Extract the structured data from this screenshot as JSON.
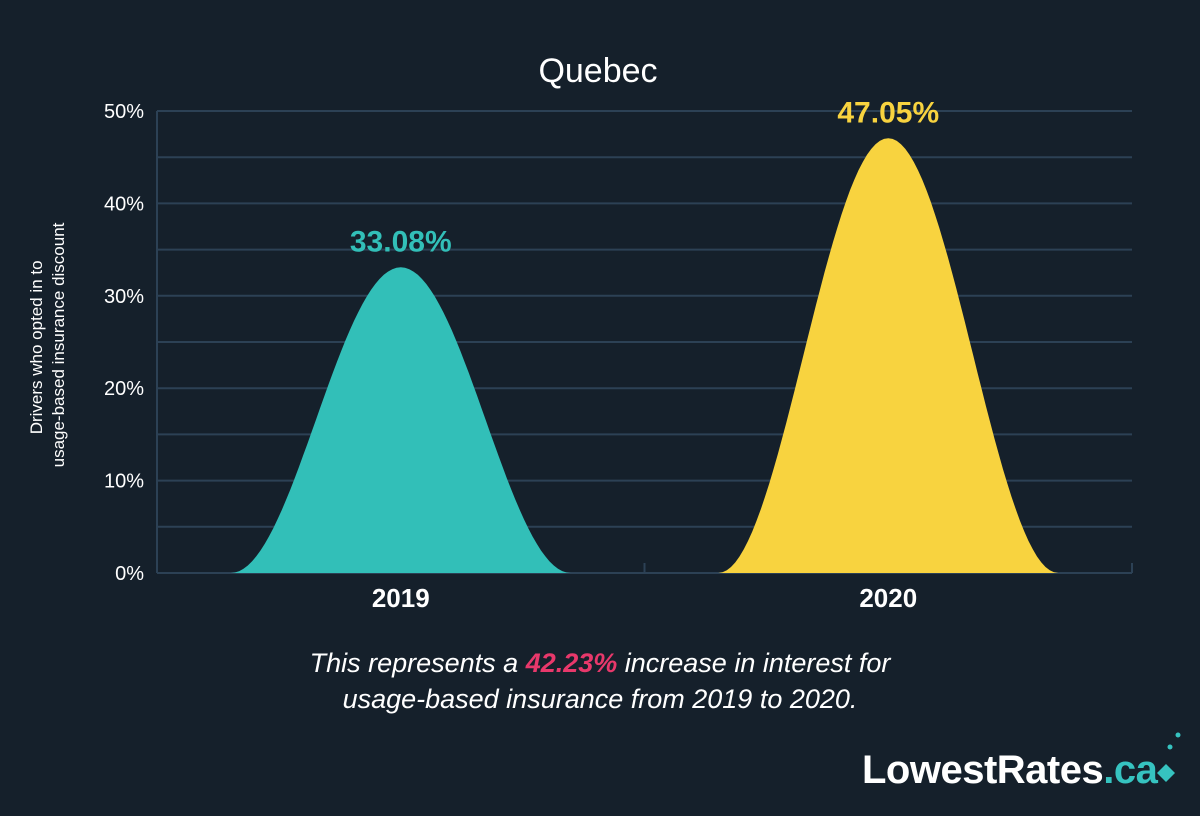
{
  "chart_data": {
    "type": "area",
    "title": "Quebec",
    "xlabel": "",
    "ylabel_lines": [
      "Drivers who opted in to",
      "usage-based insurance discount"
    ],
    "ylim": [
      0,
      50
    ],
    "yticks": [
      0,
      10,
      20,
      30,
      40,
      50
    ],
    "ytick_labels": [
      "0%",
      "10%",
      "20%",
      "30%",
      "40%",
      "50%"
    ],
    "categories": [
      "2019",
      "2020"
    ],
    "values": [
      33.08,
      47.05
    ],
    "value_labels": [
      "33.08%",
      "47.05%"
    ],
    "colors": [
      "#32bfb8",
      "#f8d33f"
    ],
    "grid": true
  },
  "caption": {
    "line1_prefix": "This represents a ",
    "highlight": "42.23%",
    "line1_suffix": " increase in interest for",
    "line2": "usage-based insurance from 2019 to 2020."
  },
  "logo": {
    "brand": "LowestRates",
    "tld": ".ca"
  },
  "theme": {
    "background": "#15202b",
    "grid": "#2c4155",
    "highlight": "#e8386b"
  }
}
